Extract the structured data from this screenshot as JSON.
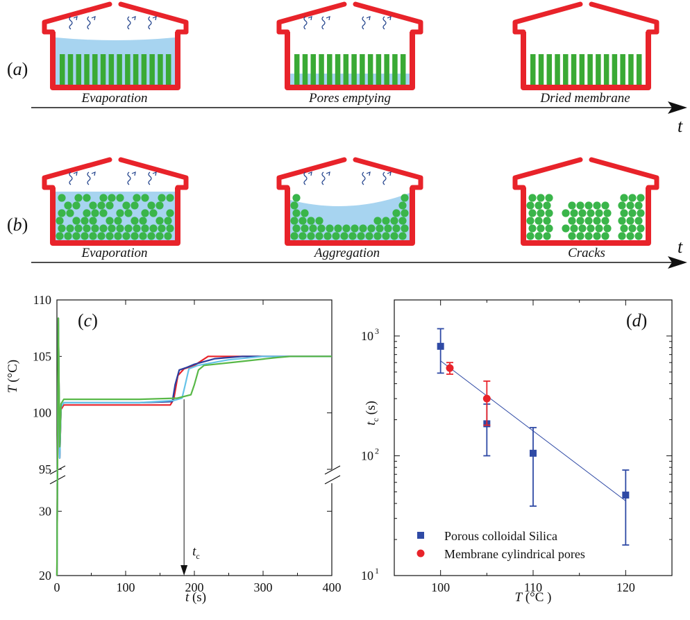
{
  "colors": {
    "pot": "#e8232a",
    "water": "#a7d4f0",
    "pillar": "#3aaa35",
    "particle": "#3ab54a",
    "vapor": "#1e3f8a",
    "silica": "#2f4aa5",
    "membrane": "#e8232a",
    "fit_line": "#2f4aa5",
    "curve_red": "#e8232a",
    "curve_blue": "#2a3f9e",
    "curve_cyan": "#66c3e8",
    "curve_green": "#58b847"
  },
  "panel_a": {
    "label_open": "(",
    "label_letter": "a",
    "label_close": ")",
    "time_axis": "t",
    "captions": [
      "Evaporation",
      "Pores emptying",
      "Dried membrane"
    ]
  },
  "panel_b": {
    "label_open": "(",
    "label_letter": "b",
    "label_close": ")",
    "time_axis": "t",
    "captions": [
      "Evaporation",
      "Aggregation",
      "Cracks"
    ]
  },
  "chart_data": [
    {
      "panel": "c",
      "type": "line",
      "panel_label_open": "(",
      "panel_label_letter": "c",
      "panel_label_close": ")",
      "xlabel_var": "t",
      "xlabel_unit": " (s)",
      "ylabel_var": "T",
      "ylabel_unit": " (°C)",
      "xlim": [
        0,
        400
      ],
      "x_ticks": [
        "0",
        "100",
        "200",
        "300",
        "400"
      ],
      "y_ticks_upper": [
        "95",
        "100",
        "105",
        "110"
      ],
      "y_ticks_lower": [
        "20",
        "30"
      ],
      "axis_break": true,
      "annotation_var": "t",
      "annotation_sub": "c",
      "annotation_x": 185,
      "series": [
        {
          "color": "curve_red",
          "points": [
            [
              0,
              20
            ],
            [
              2,
              60
            ],
            [
              4,
              96
            ],
            [
              6,
              100.3
            ],
            [
              10,
              100.7
            ],
            [
              60,
              100.7
            ],
            [
              120,
              100.7
            ],
            [
              165,
              100.7
            ],
            [
              170,
              101.2
            ],
            [
              176,
              103.3
            ],
            [
              185,
              103.9
            ],
            [
              200,
              104.2
            ],
            [
              210,
              104.6
            ],
            [
              220,
              105
            ],
            [
              400,
              105
            ]
          ]
        },
        {
          "color": "curve_blue",
          "points": [
            [
              0,
              20
            ],
            [
              2,
              60
            ],
            [
              4,
              96
            ],
            [
              6,
              100.5
            ],
            [
              10,
              100.9
            ],
            [
              60,
              100.9
            ],
            [
              120,
              100.9
            ],
            [
              168,
              101
            ],
            [
              172,
              102.5
            ],
            [
              178,
              103.8
            ],
            [
              188,
              104
            ],
            [
              200,
              104.3
            ],
            [
              230,
              104.8
            ],
            [
              270,
              105
            ],
            [
              400,
              105
            ]
          ]
        },
        {
          "color": "curve_cyan",
          "points": [
            [
              0,
              20
            ],
            [
              2,
              60
            ],
            [
              4,
              96
            ],
            [
              6,
              100.5
            ],
            [
              10,
              100.9
            ],
            [
              120,
              100.9
            ],
            [
              170,
              101.1
            ],
            [
              182,
              101.3
            ],
            [
              186,
              102.3
            ],
            [
              192,
              103.9
            ],
            [
              205,
              104.2
            ],
            [
              250,
              104.7
            ],
            [
              300,
              105
            ],
            [
              400,
              105
            ]
          ]
        },
        {
          "color": "curve_green",
          "points": [
            [
              0,
              20
            ],
            [
              2,
              60
            ],
            [
              4,
              97
            ],
            [
              6,
              100.8
            ],
            [
              10,
              101.2
            ],
            [
              60,
              101.2
            ],
            [
              120,
              101.2
            ],
            [
              175,
              101.3
            ],
            [
              195,
              101.6
            ],
            [
              200,
              102.5
            ],
            [
              206,
              103.8
            ],
            [
              214,
              104.2
            ],
            [
              260,
              104.5
            ],
            [
              320,
              104.9
            ],
            [
              340,
              105
            ],
            [
              400,
              105
            ]
          ]
        }
      ]
    },
    {
      "panel": "d",
      "type": "scatter",
      "panel_label_open": "(",
      "panel_label_letter": "d",
      "panel_label_close": ")",
      "xlabel_var": "T",
      "xlabel_unit": " (°C )",
      "ylabel_var": "t",
      "ylabel_sub": "c",
      "ylabel_unit": " (s)",
      "xlim": [
        95,
        125
      ],
      "ylim": [
        10,
        2000
      ],
      "yscale": "log",
      "x_ticks": [
        "100",
        "110",
        "120"
      ],
      "y_ticks": [
        {
          "base": "10",
          "exp": "1"
        },
        {
          "base": "10",
          "exp": "2"
        },
        {
          "base": "10",
          "exp": "3"
        }
      ],
      "legend_placement": "bottom-left",
      "series": [
        {
          "name": "Porous colloidal Silica",
          "marker": "square",
          "color": "silica",
          "points": [
            {
              "x": 100,
              "y": 820,
              "lo": 490,
              "hi": 1150
            },
            {
              "x": 105,
              "y": 185,
              "lo": 100,
              "hi": 270
            },
            {
              "x": 110,
              "y": 105,
              "lo": 38,
              "hi": 172
            },
            {
              "x": 120,
              "y": 47,
              "lo": 18,
              "hi": 76
            }
          ]
        },
        {
          "name": "Membrane cylindrical pores",
          "marker": "circle",
          "color": "membrane",
          "points": [
            {
              "x": 101,
              "y": 540,
              "lo": 480,
              "hi": 600
            },
            {
              "x": 105,
              "y": 300,
              "lo": 180,
              "hi": 420
            }
          ]
        }
      ],
      "fit_line": {
        "x": [
          100,
          120
        ],
        "y": [
          620,
          42
        ]
      }
    }
  ]
}
